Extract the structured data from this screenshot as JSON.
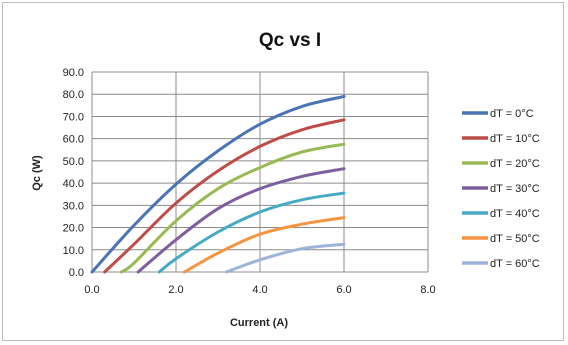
{
  "chart_data": {
    "type": "line",
    "title": "Qc vs I",
    "xlabel": "Current (A)",
    "ylabel": "Qc (W)",
    "xlim": [
      0,
      8
    ],
    "ylim": [
      0,
      90
    ],
    "x_ticks": [
      "0.0",
      "2.0",
      "4.0",
      "6.0",
      "8.0"
    ],
    "y_ticks": [
      "0.0",
      "10.0",
      "20.0",
      "30.0",
      "40.0",
      "50.0",
      "60.0",
      "70.0",
      "80.0",
      "90.0"
    ],
    "grid": true,
    "legend_position": "right",
    "series": [
      {
        "name": "dT = 0°C",
        "color": "#4a74b5",
        "x": [
          0,
          1,
          2,
          3,
          4,
          5,
          6
        ],
        "y": [
          0,
          21,
          39.5,
          54.5,
          66.5,
          74.5,
          79
        ]
      },
      {
        "name": "dT = 10°C",
        "color": "#be4c48",
        "x": [
          0.3,
          1,
          2,
          3,
          4,
          5,
          6
        ],
        "y": [
          0,
          12.5,
          31,
          45.5,
          56.5,
          64,
          68.5
        ]
      },
      {
        "name": "dT = 20°C",
        "color": "#98b954",
        "x": [
          0.7,
          1,
          2,
          3,
          4,
          5,
          6
        ],
        "y": [
          0,
          4,
          23,
          37.5,
          47,
          54,
          57.5
        ]
      },
      {
        "name": "dT = 30°C",
        "color": "#7d5fa0",
        "x": [
          1.1,
          2,
          3,
          4,
          5,
          6
        ],
        "y": [
          0,
          14.5,
          28.5,
          37.5,
          43,
          46.5
        ]
      },
      {
        "name": "dT = 40°C",
        "color": "#46aac5",
        "x": [
          1.6,
          2,
          3,
          4,
          5,
          6
        ],
        "y": [
          0,
          6,
          18,
          27,
          32.5,
          35.5
        ]
      },
      {
        "name": "dT = 50°C",
        "color": "#f59541",
        "x": [
          2.2,
          3,
          4,
          5,
          6
        ],
        "y": [
          0,
          8.5,
          17,
          21.5,
          24.5
        ]
      },
      {
        "name": "dT = 60°C",
        "color": "#9db3d8",
        "x": [
          3.2,
          4,
          5,
          6
        ],
        "y": [
          0,
          5.5,
          10.5,
          12.5
        ]
      }
    ]
  }
}
